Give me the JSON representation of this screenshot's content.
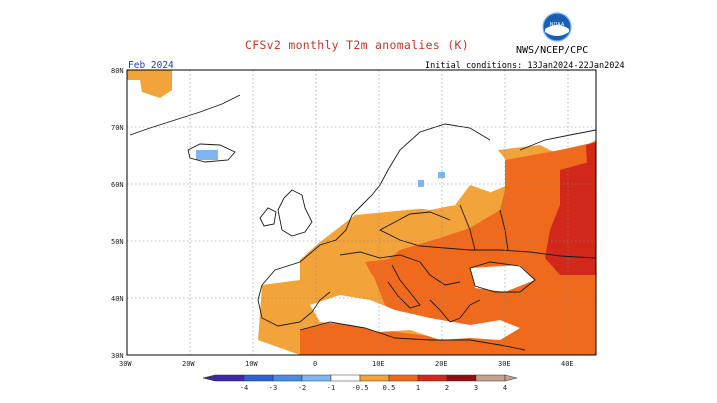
{
  "title": "CFSv2 monthly T2m anomalies (K)",
  "agency": "NWS/NCEP/CPC",
  "logo_text": "NOAA",
  "month_label": "Feb 2024",
  "initial_conditions": "Initial conditions: 13Jan2024-22Jan2024",
  "map": {
    "lat_labels": [
      "80N",
      "70N",
      "60N",
      "50N",
      "40N",
      "30N"
    ],
    "lon_labels": [
      "30W",
      "20W",
      "10W",
      "0",
      "10E",
      "20E",
      "30E",
      "40E"
    ]
  },
  "colorbar": {
    "labels": [
      "-4",
      "-3",
      "-2",
      "-1",
      "-0.5",
      "0.5",
      "1",
      "2",
      "3",
      "4"
    ],
    "colors": [
      "#3a2aa8",
      "#2f5fd6",
      "#4a8be3",
      "#7fb6ef",
      "#ffffff",
      "#f2a33a",
      "#ef6a1d",
      "#d2281c",
      "#8e0f0f",
      "#c8a08c"
    ]
  }
}
